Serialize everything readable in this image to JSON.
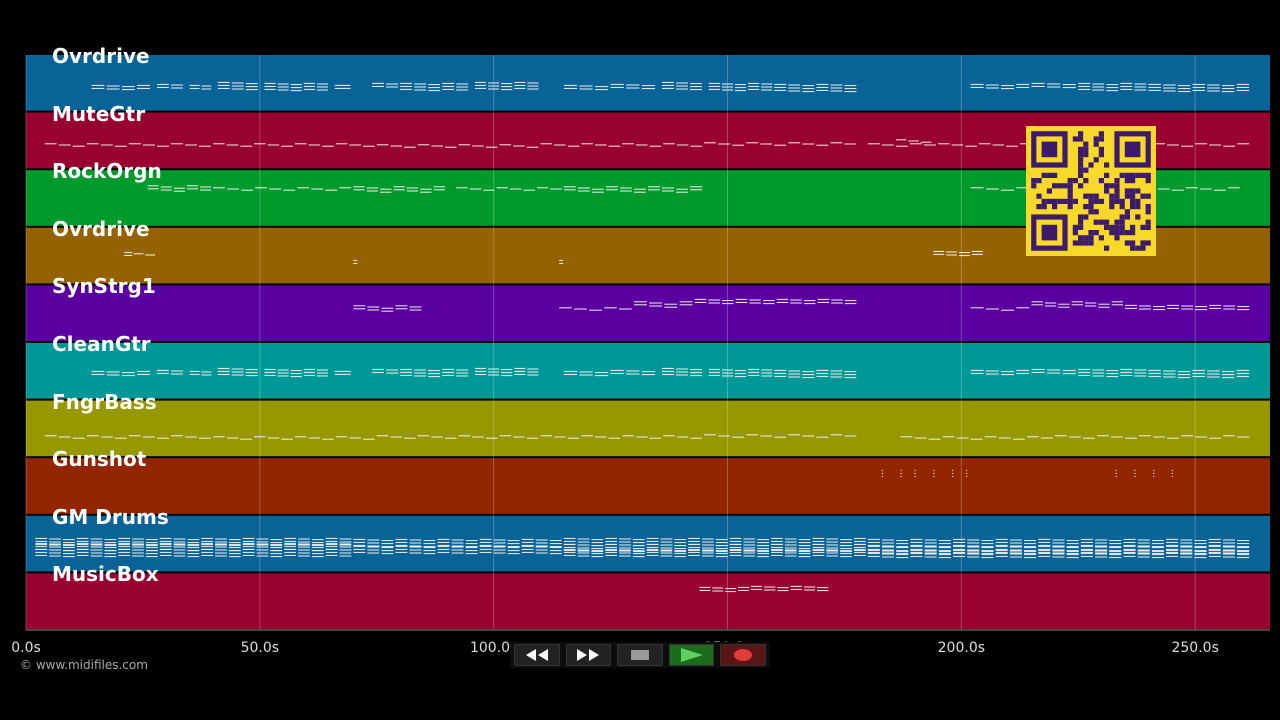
{
  "tracks": [
    {
      "name": "Ovrdrive",
      "color": "#0a6396",
      "notes": [
        [
          14,
          27,
          88,
          0.55
        ],
        [
          28,
          34,
          87,
          0.6
        ],
        [
          35,
          40,
          88,
          0.55
        ],
        [
          41,
          50,
          86,
          0.75
        ],
        [
          51,
          65,
          87,
          0.85
        ],
        [
          66,
          70,
          88,
          0.6
        ],
        [
          74,
          80,
          86,
          0.55
        ],
        [
          80,
          95,
          87,
          0.8
        ],
        [
          96,
          110,
          86,
          0.85
        ],
        [
          115,
          125,
          88,
          0.6
        ],
        [
          125,
          135,
          87,
          0.55
        ],
        [
          136,
          145,
          86,
          0.7
        ],
        [
          146,
          160,
          87,
          0.9
        ],
        [
          160,
          178,
          88,
          0.85
        ],
        [
          202,
          215,
          87,
          0.55
        ],
        [
          215,
          225,
          86,
          0.6
        ],
        [
          225,
          240,
          87,
          0.7
        ],
        [
          240,
          262,
          88,
          0.75
        ]
      ]
    },
    {
      "name": "MuteGtr",
      "color": "#980030",
      "notes": [
        [
          4,
          40,
          146,
          0.18
        ],
        [
          40,
          75,
          146,
          0.18
        ],
        [
          75,
          110,
          147,
          0.18
        ],
        [
          110,
          145,
          146,
          0.18
        ],
        [
          145,
          178,
          145,
          0.18
        ],
        [
          180,
          195,
          146,
          0.18
        ],
        [
          186,
          194,
          142,
          0.3
        ],
        [
          195,
          230,
          146,
          0.18
        ],
        [
          232,
          262,
          146,
          0.18
        ]
      ]
    },
    {
      "name": "RockOrgn",
      "color": "#009a2c",
      "notes": [
        [
          26,
          40,
          189,
          0.45
        ],
        [
          40,
          70,
          190,
          0.4
        ],
        [
          70,
          90,
          190,
          0.45
        ],
        [
          92,
          115,
          190,
          0.4
        ],
        [
          115,
          145,
          190,
          0.45
        ],
        [
          202,
          215,
          190,
          0.4
        ],
        [
          216,
          230,
          189,
          0.45
        ],
        [
          230,
          260,
          190,
          0.4
        ]
      ]
    },
    {
      "name": "Ovrdrive",
      "color": "#946200",
      "notes": [
        [
          21,
          23,
          255,
          0.5
        ],
        [
          23,
          28,
          256,
          0.4
        ],
        [
          70,
          71,
          263,
          0.6
        ],
        [
          114,
          115,
          263,
          0.6
        ],
        [
          194,
          205,
          254,
          0.5
        ]
      ]
    },
    {
      "name": "SynStrg1",
      "color": "#5a00a0",
      "notes": [
        [
          70,
          85,
          309,
          0.45
        ],
        [
          114,
          130,
          310,
          0.4
        ],
        [
          130,
          143,
          305,
          0.45
        ],
        [
          143,
          178,
          302,
          0.5
        ],
        [
          202,
          215,
          310,
          0.4
        ],
        [
          215,
          235,
          305,
          0.45
        ],
        [
          235,
          262,
          308,
          0.5
        ]
      ]
    },
    {
      "name": "CleanGtr",
      "color": "#009896",
      "notes": [
        [
          14,
          27,
          374,
          0.55
        ],
        [
          28,
          34,
          373,
          0.6
        ],
        [
          35,
          40,
          374,
          0.55
        ],
        [
          41,
          50,
          372,
          0.75
        ],
        [
          51,
          65,
          373,
          0.85
        ],
        [
          66,
          70,
          374,
          0.6
        ],
        [
          74,
          80,
          372,
          0.55
        ],
        [
          80,
          95,
          373,
          0.8
        ],
        [
          96,
          110,
          372,
          0.85
        ],
        [
          115,
          125,
          374,
          0.6
        ],
        [
          125,
          135,
          373,
          0.55
        ],
        [
          136,
          145,
          372,
          0.7
        ],
        [
          146,
          160,
          373,
          0.9
        ],
        [
          160,
          178,
          374,
          0.85
        ],
        [
          202,
          215,
          373,
          0.55
        ],
        [
          215,
          225,
          372,
          0.6
        ],
        [
          225,
          240,
          373,
          0.7
        ],
        [
          240,
          262,
          374,
          0.75
        ]
      ]
    },
    {
      "name": "FngrBass",
      "color": "#979800",
      "notes": [
        [
          4,
          40,
          438,
          0.35
        ],
        [
          40,
          75,
          439,
          0.35
        ],
        [
          75,
          110,
          438,
          0.35
        ],
        [
          110,
          145,
          438,
          0.35
        ],
        [
          145,
          178,
          437,
          0.35
        ],
        [
          187,
          220,
          439,
          0.35
        ],
        [
          220,
          262,
          438,
          0.35
        ]
      ]
    },
    {
      "name": "Gunshot",
      "color": "#922600",
      "notes": [
        [
          183,
          183.3,
          474,
          1
        ],
        [
          187,
          187.3,
          474,
          1
        ],
        [
          190,
          190.3,
          474,
          1
        ],
        [
          194,
          194.3,
          474,
          1
        ],
        [
          198,
          198.3,
          474,
          1
        ],
        [
          201,
          201.3,
          474,
          1
        ],
        [
          233,
          233.3,
          474,
          1
        ],
        [
          237,
          237.3,
          474,
          1
        ],
        [
          241,
          241.3,
          474,
          1
        ],
        [
          245,
          245.3,
          474,
          1
        ]
      ]
    },
    {
      "name": "GM Drums",
      "color": "#0a6396",
      "notes": [
        [
          2,
          70,
          542,
          0.9
        ],
        [
          2,
          70,
          547,
          0.9
        ],
        [
          2,
          70,
          553,
          0.9
        ],
        [
          70,
          115,
          543,
          0.9
        ],
        [
          70,
          115,
          550,
          0.9
        ],
        [
          115,
          180,
          542,
          0.9
        ],
        [
          115,
          180,
          548,
          0.9
        ],
        [
          115,
          180,
          553,
          0.9
        ],
        [
          180,
          262,
          543,
          0.9
        ],
        [
          180,
          262,
          550,
          0.9
        ],
        [
          180,
          262,
          554,
          0.9
        ]
      ]
    },
    {
      "name": "MusicBox",
      "color": "#980030",
      "notes": [
        [
          144,
          155,
          590,
          0.5
        ],
        [
          155,
          172,
          589,
          0.5
        ]
      ]
    }
  ],
  "x_ticks": [
    "0.0s",
    "50.0s",
    "100.0s",
    "150.0s",
    "200.0s",
    "250.0s"
  ],
  "tick_values": [
    0,
    50,
    100,
    150,
    200,
    250
  ],
  "duration": 266,
  "copyright": "© www.midifiles.com",
  "transport": {
    "buttons": [
      "rewind",
      "fast-forward",
      "stop",
      "play",
      "record"
    ]
  }
}
